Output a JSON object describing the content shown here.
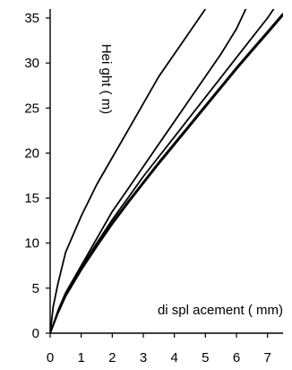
{
  "chart_data": {
    "type": "line",
    "title": "",
    "xlabel": "di spl acement ( mm)",
    "ylabel": "Hei ght ( m)",
    "xlim": [
      0,
      7.5
    ],
    "ylim": [
      0,
      36
    ],
    "xticks": [
      0,
      1,
      2,
      3,
      4,
      5,
      6,
      7
    ],
    "yticks": [
      0,
      5,
      10,
      15,
      20,
      25,
      30,
      35
    ],
    "grid": false,
    "legend": "none",
    "series": [
      {
        "x": [
          0,
          0.1,
          0.25,
          0.5,
          1,
          1.5,
          2,
          2.5,
          3,
          3.5,
          4,
          4.5,
          5
        ],
        "y": [
          0,
          3,
          5.5,
          9,
          13,
          16.5,
          19.5,
          22.5,
          25.5,
          28.5,
          31,
          33.5,
          36
        ]
      },
      {
        "x": [
          0,
          0.25,
          0.5,
          1,
          1.5,
          2,
          2.5,
          3,
          3.5,
          4,
          4.5,
          5,
          5.5,
          6,
          6.3
        ],
        "y": [
          0,
          2.5,
          4.5,
          7.5,
          10.5,
          13.5,
          16,
          18.5,
          21,
          23.5,
          26,
          28.5,
          31,
          33.8,
          36
        ]
      },
      {
        "x": [
          0,
          0.25,
          0.5,
          1,
          1.5,
          2,
          2.5,
          3,
          3.5,
          4,
          4.5,
          5,
          5.5,
          6,
          6.5,
          7,
          7.2
        ],
        "y": [
          0,
          2.3,
          4.3,
          7.3,
          10,
          12.6,
          15,
          17.4,
          19.6,
          21.8,
          24,
          26.2,
          28.4,
          30.6,
          32.8,
          35,
          36
        ]
      },
      {
        "x": [
          0,
          0.25,
          0.5,
          1,
          1.5,
          2,
          2.5,
          3,
          3.5,
          4,
          4.5,
          5,
          5.5,
          6,
          6.5,
          7,
          7.5
        ],
        "y": [
          0,
          2.3,
          4.2,
          7.1,
          9.8,
          12.3,
          14.6,
          16.8,
          19,
          21.1,
          23.2,
          25.3,
          27.4,
          29.5,
          31.5,
          33.5,
          35.5
        ]
      },
      {
        "x": [
          0,
          0.25,
          0.5,
          1,
          1.5,
          2,
          2.5,
          3,
          3.5,
          4,
          4.5,
          5,
          5.5,
          6,
          6.5,
          7,
          7.5
        ],
        "y": [
          0,
          2.2,
          4.1,
          7,
          9.6,
          12.1,
          14.4,
          16.6,
          18.8,
          20.9,
          23,
          25.1,
          27.2,
          29.3,
          31.3,
          33.3,
          35.3
        ]
      }
    ]
  }
}
